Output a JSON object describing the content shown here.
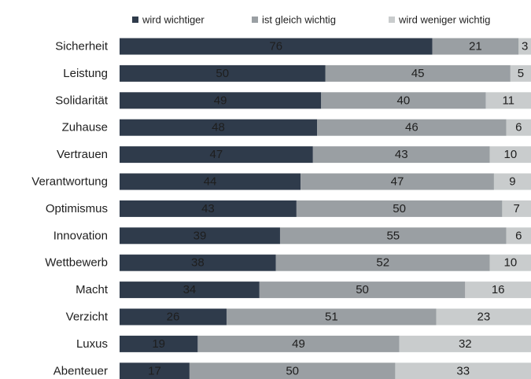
{
  "chart_data": {
    "type": "stacked-bar",
    "orientation": "horizontal",
    "categories": [
      "Sicherheit",
      "Leistung",
      "Solidarität",
      "Zuhause",
      "Vertrauen",
      "Verantwortung",
      "Optimismus",
      "Innovation",
      "Wettbewerb",
      "Macht",
      "Verzicht",
      "Luxus",
      "Abenteuer"
    ],
    "series": [
      {
        "name": "wird wichtiger",
        "color": "#2f3b4b",
        "label_color": "#ffffff",
        "values": [
          76,
          50,
          49,
          48,
          47,
          44,
          43,
          39,
          38,
          34,
          26,
          19,
          17
        ]
      },
      {
        "name": "ist gleich wichtig",
        "color": "#9a9fa3",
        "label_color": "#1e1e1e",
        "values": [
          21,
          45,
          40,
          46,
          43,
          47,
          50,
          55,
          52,
          50,
          51,
          49,
          50
        ]
      },
      {
        "name": "wird weniger wichtig",
        "color": "#c9cccd",
        "label_color": "#1e1e1e",
        "values": [
          3,
          5,
          11,
          6,
          10,
          9,
          7,
          6,
          10,
          16,
          23,
          32,
          33
        ]
      }
    ],
    "xlim": [
      0,
      100
    ],
    "legend": "top"
  }
}
